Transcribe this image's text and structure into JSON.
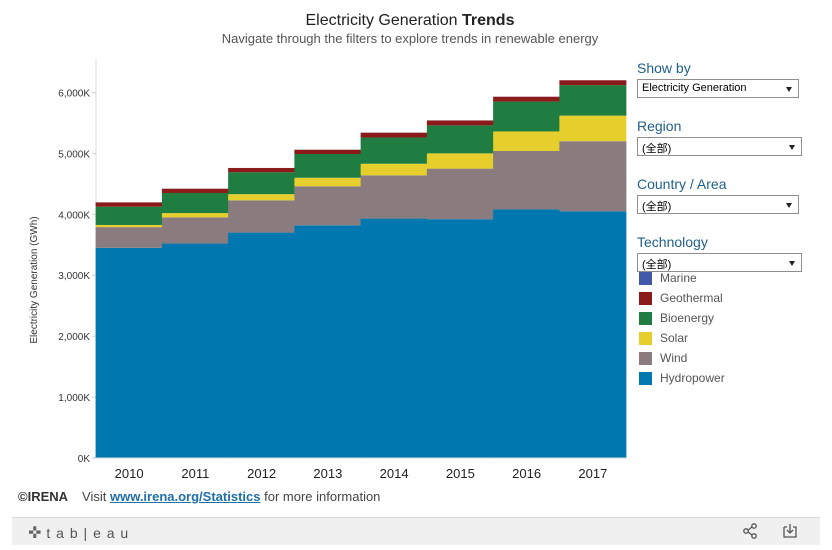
{
  "header": {
    "title_normal": "Electricity Generation ",
    "title_bold": "Trends",
    "subtitle": "Navigate through the filters to explore trends in renewable energy"
  },
  "filters": [
    {
      "label": "Show by",
      "value": "Electricity Generation"
    },
    {
      "label": "Region",
      "value": "(全部)"
    },
    {
      "label": "Country / Area",
      "value": "(全部)"
    },
    {
      "label": "Technology",
      "value": "(全部)"
    }
  ],
  "footer": {
    "copyright": "©IRENA",
    "visit": "Visit ",
    "link": "www.irena.org/Statistics",
    "more": " for more information"
  },
  "toolbar": {
    "logo_text": "t a b | e a u",
    "share_icon": "share-icon",
    "download_icon": "download-icon"
  },
  "chart_data": {
    "type": "bar",
    "stacked": true,
    "categories": [
      "2010",
      "2011",
      "2012",
      "2013",
      "2014",
      "2015",
      "2016",
      "2017"
    ],
    "ylabel": "Electricity Generation (GWh)",
    "ylim": [
      0,
      6500
    ],
    "yticks": [
      0,
      1000,
      2000,
      3000,
      4000,
      5000,
      6000
    ],
    "ytick_labels": [
      "0K",
      "1,000K",
      "2,000K",
      "3,000K",
      "4,000K",
      "5,000K",
      "6,000K"
    ],
    "grid": false,
    "legend_position": "right",
    "series": [
      {
        "name": "Hydropower",
        "color": "#0077ae",
        "values": [
          3450,
          3520,
          3700,
          3820,
          3930,
          3920,
          4080,
          4050
        ]
      },
      {
        "name": "Wind",
        "color": "#8a7c7e",
        "values": [
          340,
          430,
          530,
          640,
          710,
          830,
          960,
          1150
        ]
      },
      {
        "name": "Solar",
        "color": "#e6cf2c",
        "values": [
          35,
          70,
          100,
          140,
          190,
          250,
          320,
          420
        ]
      },
      {
        "name": "Bioenergy",
        "color": "#1f7d42",
        "values": [
          300,
          330,
          360,
          390,
          430,
          460,
          490,
          500
        ]
      },
      {
        "name": "Geothermal",
        "color": "#8b1a1a",
        "values": [
          70,
          70,
          70,
          70,
          80,
          80,
          80,
          80
        ]
      },
      {
        "name": "Marine",
        "color": "#4059a8",
        "values": [
          1,
          1,
          1,
          1,
          1,
          1,
          1,
          1
        ]
      }
    ],
    "legend_order": [
      "Marine",
      "Geothermal",
      "Bioenergy",
      "Solar",
      "Wind",
      "Hydropower"
    ]
  }
}
